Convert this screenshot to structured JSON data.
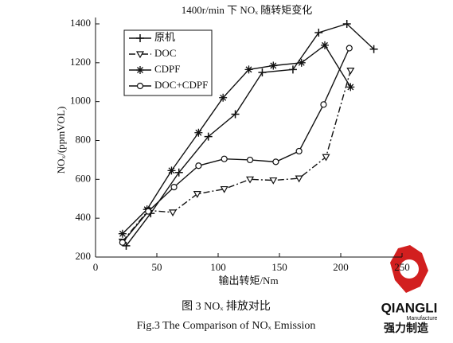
{
  "chart_data": {
    "type": "line",
    "title": "1400r/min 下 NOₓ 随转矩变化",
    "x_label": "输出转矩/Nm",
    "y_label": "NOₓ/(ppmVOL)",
    "xlim": [
      0,
      250
    ],
    "xticks": [
      0,
      50,
      100,
      150,
      200,
      250
    ],
    "ylim": [
      200,
      1400
    ],
    "yticks": [
      200,
      400,
      600,
      800,
      1000,
      1200,
      1400
    ],
    "grid": false,
    "legend": "upper left",
    "series": [
      {
        "name": "原机",
        "color": "#111111",
        "marker": "plus",
        "line_style": "solid",
        "x": [
          25,
          45,
          68,
          92,
          114,
          136,
          161,
          182,
          205,
          227
        ],
        "values": [
          258,
          425,
          635,
          820,
          935,
          1150,
          1165,
          1355,
          1400,
          1270
        ]
      },
      {
        "name": "DOC",
        "color": "#111111",
        "marker": "triangle-down",
        "line_style": "dashdot",
        "x": [
          22,
          43,
          63,
          83,
          105,
          126,
          145,
          166,
          188,
          208
        ],
        "values": [
          280,
          440,
          430,
          525,
          550,
          600,
          595,
          605,
          715,
          1160
        ]
      },
      {
        "name": "CDPF",
        "color": "#111111",
        "marker": "asterisk",
        "line_style": "solid",
        "x": [
          22,
          42,
          62,
          84,
          104,
          125,
          145,
          168,
          187,
          208
        ],
        "values": [
          320,
          445,
          645,
          840,
          1020,
          1165,
          1185,
          1200,
          1290,
          1075
        ]
      },
      {
        "name": "DOC+CDPF",
        "color": "#111111",
        "marker": "circle",
        "line_style": "solid",
        "x": [
          22,
          43,
          64,
          84,
          105,
          126,
          147,
          166,
          186,
          207
        ],
        "values": [
          275,
          435,
          560,
          670,
          705,
          700,
          690,
          745,
          985,
          1275
        ]
      }
    ]
  },
  "caption": {
    "chinese": "图 3 NOₓ 排放对比",
    "english": "Fig.3 The Comparison of NOₓ Emission"
  },
  "logo": {
    "brand": "QIANGLI",
    "tagline": "Manufacture",
    "chinese": "强力制造"
  }
}
